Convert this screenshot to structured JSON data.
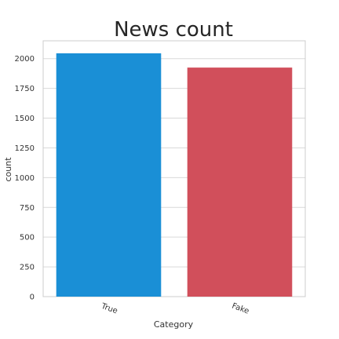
{
  "chart_data": {
    "type": "bar",
    "title": "News count",
    "xlabel": "Category",
    "ylabel": "count",
    "categories": [
      "True",
      "Fake"
    ],
    "values": [
      2045,
      1925
    ],
    "colors": [
      "#1a8fd6",
      "#d14f5b"
    ],
    "ylim": [
      0,
      2150
    ],
    "yticks": [
      0,
      250,
      500,
      750,
      1000,
      1250,
      1500,
      1750,
      2000
    ],
    "ytick_labels": [
      "0",
      "250",
      "500",
      "750",
      "1000",
      "1250",
      "1500",
      "1750",
      "2000"
    ],
    "grid": true,
    "legend": "none"
  }
}
